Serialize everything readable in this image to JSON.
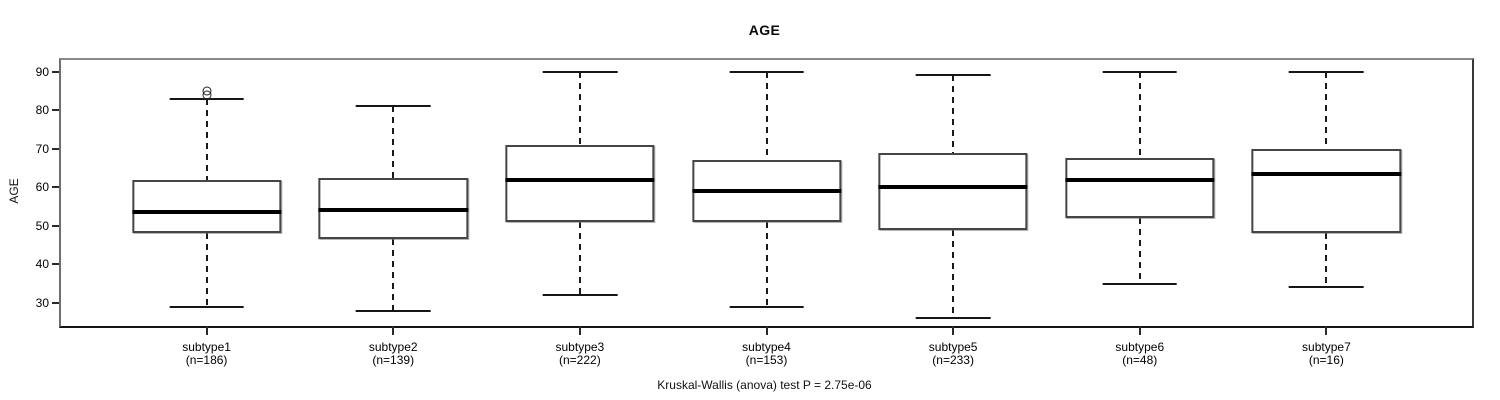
{
  "chart_data": {
    "type": "boxplot",
    "title": "AGE",
    "ylabel": "AGE",
    "annotation": "Kruskal-Wallis (anova) test P = 2.75e-06",
    "ylim": [
      24,
      93
    ],
    "yticks": [
      30,
      40,
      50,
      60,
      70,
      80,
      90
    ],
    "xlim": [
      0.22,
      7.78
    ],
    "box_width_units": 0.8,
    "cap_width_units": 0.4,
    "grid": false,
    "legend": "none",
    "groups": [
      {
        "position": 1,
        "label": "subtype1",
        "count_label": "(n=186)",
        "n": 186,
        "whisker_low": 29,
        "q1": 48,
        "median": 53.5,
        "q3": 62,
        "whisker_high": 83,
        "outliers": [
          84,
          85
        ]
      },
      {
        "position": 2,
        "label": "subtype2",
        "count_label": "(n=139)",
        "n": 139,
        "whisker_low": 28,
        "q1": 46.5,
        "median": 54,
        "q3": 62.5,
        "whisker_high": 81,
        "outliers": []
      },
      {
        "position": 3,
        "label": "subtype3",
        "count_label": "(n=222)",
        "n": 222,
        "whisker_low": 32,
        "q1": 51,
        "median": 62,
        "q3": 71,
        "whisker_high": 90,
        "outliers": []
      },
      {
        "position": 4,
        "label": "subtype4",
        "count_label": "(n=153)",
        "n": 153,
        "whisker_low": 29,
        "q1": 51,
        "median": 59,
        "q3": 67,
        "whisker_high": 90,
        "outliers": []
      },
      {
        "position": 5,
        "label": "subtype5",
        "count_label": "(n=233)",
        "n": 233,
        "whisker_low": 26,
        "q1": 49,
        "median": 60,
        "q3": 69,
        "whisker_high": 89,
        "outliers": []
      },
      {
        "position": 6,
        "label": "subtype6",
        "count_label": "(n=48)",
        "n": 48,
        "whisker_low": 35,
        "q1": 52,
        "median": 62,
        "q3": 67.5,
        "whisker_high": 90,
        "outliers": []
      },
      {
        "position": 7,
        "label": "subtype7",
        "count_label": "(n=16)",
        "n": 16,
        "whisker_low": 34,
        "q1": 48,
        "median": 63.5,
        "q3": 70,
        "whisker_high": 90,
        "outliers": []
      }
    ],
    "colors": {
      "line": "#000000",
      "box_border": "#454545",
      "background": "#ffffff",
      "frame": "#8a8a8a"
    }
  }
}
